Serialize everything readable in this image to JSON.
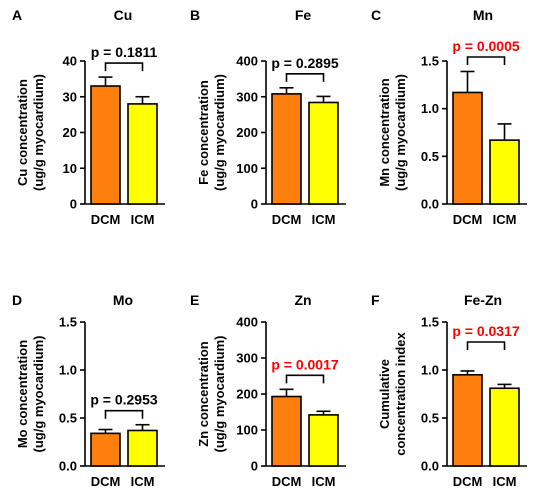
{
  "colors": {
    "dcm": "#ff7f0e",
    "icm": "#ffff00",
    "axis": "#000000",
    "sig": "#ff0000",
    "ns": "#000000"
  },
  "chart_data": [
    {
      "type": "bar",
      "panel": "A",
      "title": "Cu",
      "ylabel": [
        "Cu concentration",
        "(ug/g myocardium)"
      ],
      "categories": [
        "DCM",
        "ICM"
      ],
      "values": [
        33,
        28
      ],
      "errors": [
        2.5,
        2
      ],
      "ylim": [
        0,
        40
      ],
      "yticks": [
        0,
        10,
        20,
        30,
        40
      ],
      "yticklabels": [
        "0",
        "10",
        "20",
        "30",
        "40"
      ],
      "pvalue": "p = 0.1811",
      "significant": false
    },
    {
      "type": "bar",
      "panel": "B",
      "title": "Fe",
      "ylabel": [
        "Fe concentration",
        "(ug/g myocardium)"
      ],
      "categories": [
        "DCM",
        "ICM"
      ],
      "values": [
        308,
        284
      ],
      "errors": [
        17,
        17
      ],
      "ylim": [
        0,
        400
      ],
      "yticks": [
        0,
        100,
        200,
        300,
        400
      ],
      "yticklabels": [
        "0",
        "100",
        "200",
        "300",
        "400"
      ],
      "pvalue": "p = 0.2895",
      "significant": false
    },
    {
      "type": "bar",
      "panel": "C",
      "title": "Mn",
      "ylabel": [
        "Mn concentration",
        "(ug/g myocardium)"
      ],
      "categories": [
        "DCM",
        "ICM"
      ],
      "values": [
        1.17,
        0.67
      ],
      "errors": [
        0.22,
        0.17
      ],
      "ylim": [
        0,
        1.5
      ],
      "yticks": [
        0,
        0.5,
        1.0,
        1.5
      ],
      "yticklabels": [
        "0.0",
        "0.5",
        "1.0",
        "1.5"
      ],
      "pvalue": "p = 0.0005",
      "significant": true
    },
    {
      "type": "bar",
      "panel": "D",
      "title": "Mo",
      "ylabel": [
        "Mo concentration",
        "(ug/g myocardium)"
      ],
      "categories": [
        "DCM",
        "ICM"
      ],
      "values": [
        0.34,
        0.37
      ],
      "errors": [
        0.04,
        0.06
      ],
      "ylim": [
        0,
        1.5
      ],
      "yticks": [
        0,
        0.5,
        1.0,
        1.5
      ],
      "yticklabels": [
        "0.0",
        "0.5",
        "1.0",
        "1.5"
      ],
      "pvalue": "p = 0.2953",
      "significant": false
    },
    {
      "type": "bar",
      "panel": "E",
      "title": "Zn",
      "ylabel": [
        "Zn concentration",
        "(ug/g myocardium)"
      ],
      "categories": [
        "DCM",
        "ICM"
      ],
      "values": [
        193,
        142
      ],
      "errors": [
        20,
        10
      ],
      "ylim": [
        0,
        400
      ],
      "yticks": [
        0,
        100,
        200,
        300,
        400
      ],
      "yticklabels": [
        "0",
        "100",
        "200",
        "300",
        "400"
      ],
      "pvalue": "p = 0.0017",
      "significant": true
    },
    {
      "type": "bar",
      "panel": "F",
      "title": "Fe-Zn",
      "ylabel": [
        "Cumulative",
        "concentration index"
      ],
      "categories": [
        "DCM",
        "ICM"
      ],
      "values": [
        0.95,
        0.81
      ],
      "errors": [
        0.04,
        0.04
      ],
      "ylim": [
        0,
        1.5
      ],
      "yticks": [
        0,
        0.5,
        1.0,
        1.5
      ],
      "yticklabels": [
        "0.0",
        "0.5",
        "1.0",
        "1.5"
      ],
      "pvalue": "p = 0.0317",
      "significant": true
    }
  ]
}
